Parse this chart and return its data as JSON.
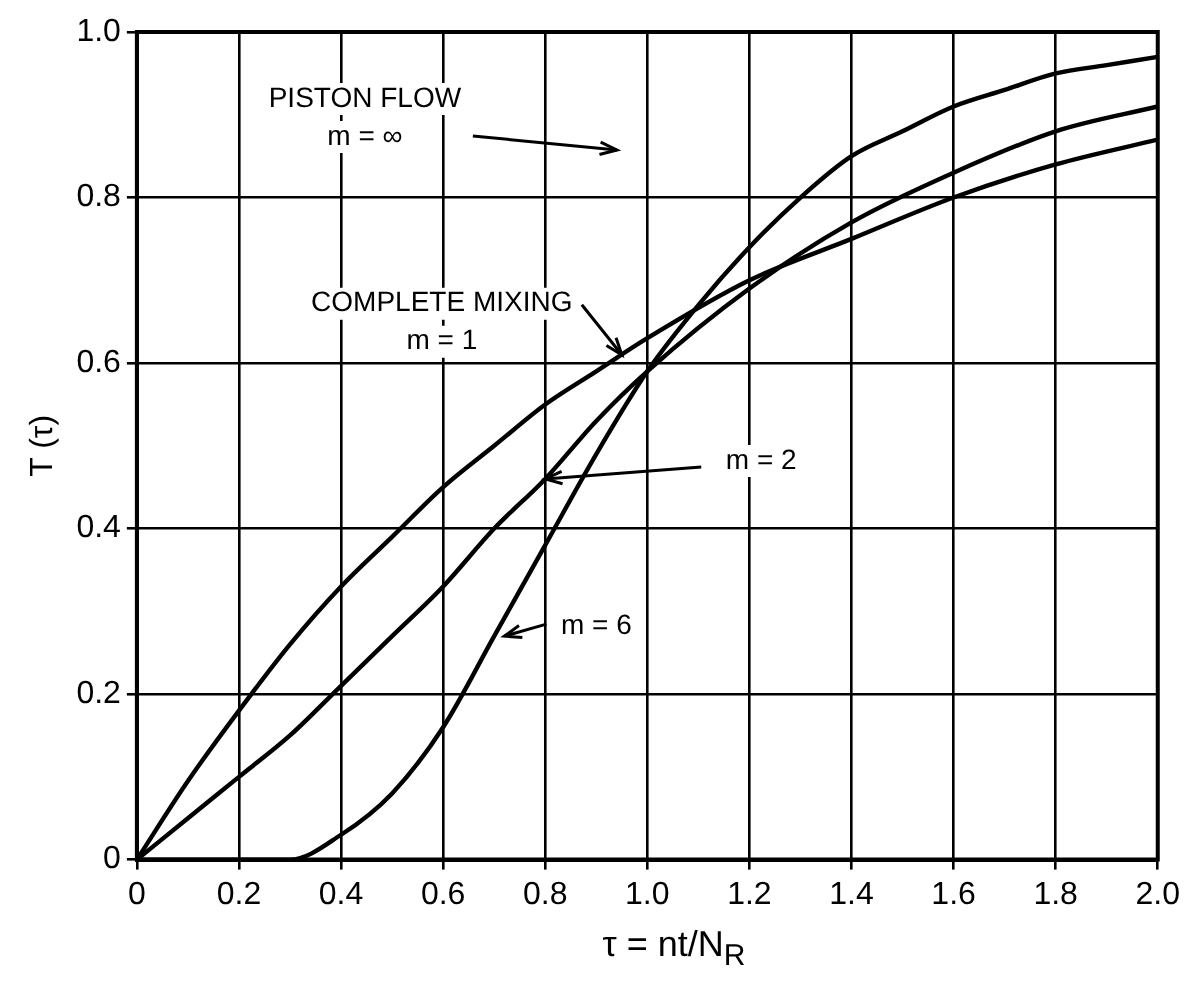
{
  "chart_data": {
    "type": "line",
    "xlabel": "τ = nt/N$_{R}$",
    "ylabel": "T (τ)",
    "xlim": [
      0,
      2
    ],
    "ylim": [
      0,
      1
    ],
    "xticks": [
      0,
      0.2,
      0.4,
      0.6,
      0.8,
      {
        "value": 1,
        "label": "1.0"
      },
      1.2,
      1.4,
      1.6,
      1.8,
      {
        "value": 2,
        "label": "2.0"
      }
    ],
    "yticks": [
      0,
      0.2,
      0.4,
      0.6,
      0.8,
      {
        "value": 1,
        "label": "1.0"
      }
    ],
    "grid": true,
    "legend": false,
    "marker": "none",
    "line_style": "solid",
    "series": [
      {
        "color": "#000000",
        "x": [
          0,
          0.1,
          0.2,
          0.3,
          0.4,
          0.5,
          0.6,
          0.7,
          0.8,
          0.9,
          1.0,
          1.2,
          1.4,
          1.6,
          1.8,
          2.0
        ],
        "values": [
          0,
          0.095,
          0.18,
          0.26,
          0.33,
          0.39,
          0.45,
          0.5,
          0.55,
          0.59,
          0.63,
          0.7,
          0.75,
          0.8,
          0.84,
          0.87
        ]
      },
      {
        "color": "#000000",
        "x": [
          0,
          0.1,
          0.2,
          0.3,
          0.4,
          0.5,
          0.6,
          0.7,
          0.8,
          0.9,
          1.0,
          1.2,
          1.4,
          1.6,
          1.8,
          2.0
        ],
        "values": [
          0,
          0.05,
          0.1,
          0.15,
          0.21,
          0.27,
          0.33,
          0.4,
          0.46,
          0.53,
          0.59,
          0.69,
          0.77,
          0.83,
          0.88,
          0.91
        ]
      },
      {
        "color": "#000000",
        "x": [
          0,
          0.3,
          0.4,
          0.5,
          0.6,
          0.7,
          0.8,
          0.9,
          1.0,
          1.1,
          1.2,
          1.3,
          1.4,
          1.5,
          1.6,
          1.7,
          1.8,
          1.9,
          2.0
        ],
        "values": [
          0,
          0,
          0.03,
          0.08,
          0.16,
          0.27,
          0.38,
          0.49,
          0.59,
          0.67,
          0.74,
          0.8,
          0.85,
          0.88,
          0.91,
          0.93,
          0.95,
          0.96,
          0.97
        ]
      }
    ],
    "annotations": [
      "PISTON FLOW\nm = ∞",
      {
        "text": "COMPLETE MIXING\nm = 1",
        "x": 0.95,
        "y": 0.61
      },
      {
        "text": "m = 2",
        "x": 0.8,
        "y": 0.46
      },
      {
        "text": "m = 6",
        "x": 0.72,
        "y": 0.27
      }
    ]
  }
}
